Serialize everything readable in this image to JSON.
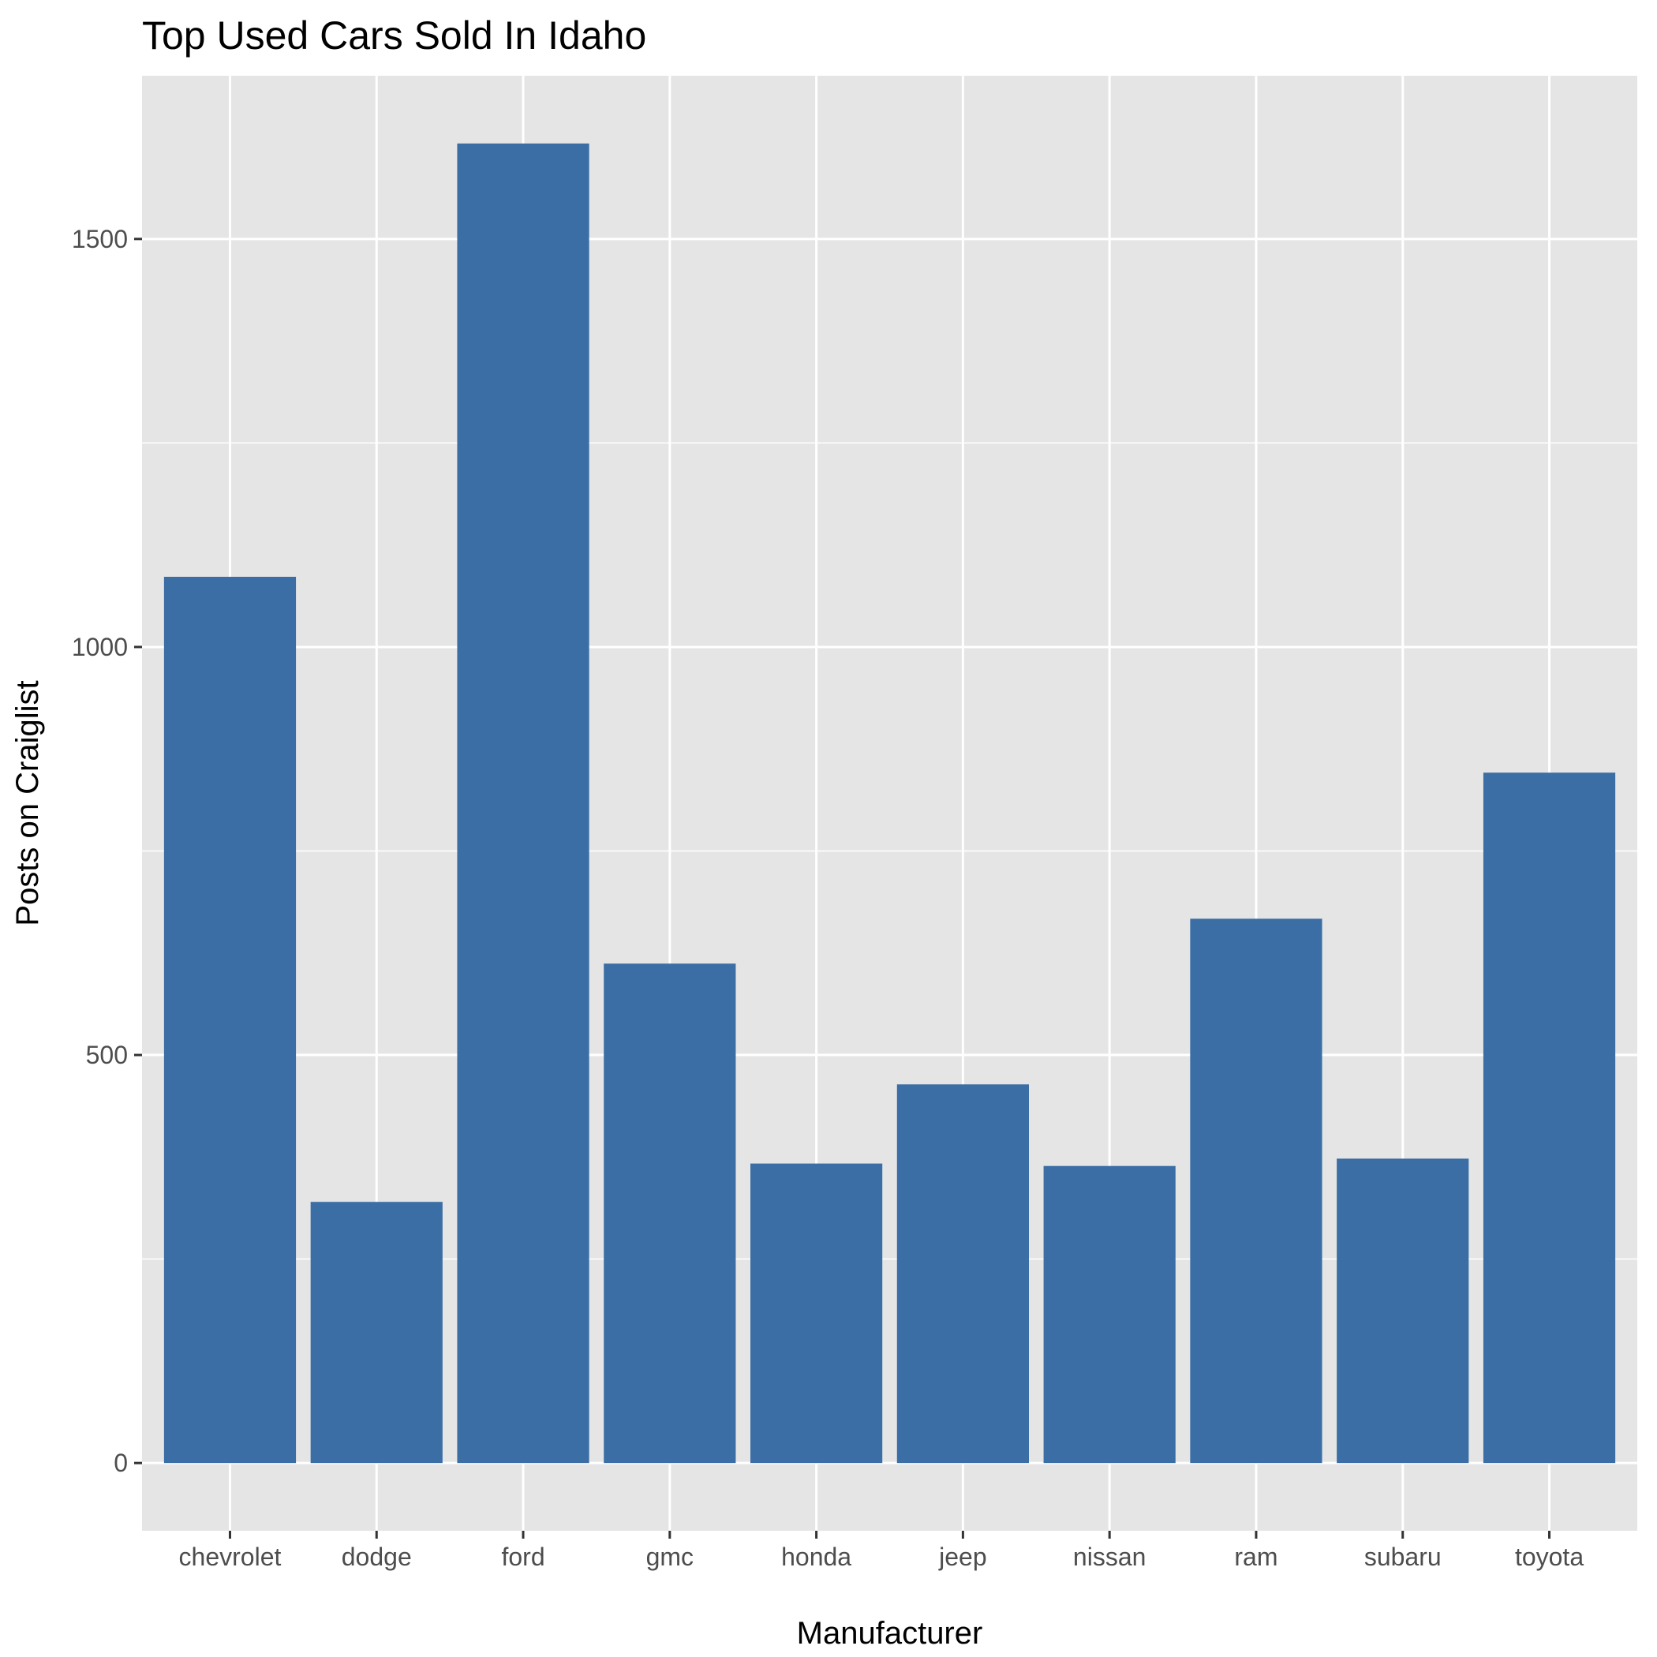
{
  "chart_data": {
    "type": "bar",
    "title": "Top Used Cars Sold In Idaho",
    "xlabel": "Manufacturer",
    "ylabel": "Posts on Craiglist",
    "categories": [
      "chevrolet",
      "dodge",
      "ford",
      "gmc",
      "honda",
      "jeep",
      "nissan",
      "ram",
      "subaru",
      "toyota"
    ],
    "values": [
      1086,
      320,
      1617,
      612,
      367,
      464,
      364,
      667,
      373,
      846
    ],
    "ylim": [
      -83,
      1700
    ],
    "yticks": [
      0,
      500,
      1000,
      1500
    ],
    "ytick_labels": [
      "0",
      "500",
      "1000",
      "1500"
    ],
    "grid": true,
    "colors": {
      "bar": "#3a6ea5",
      "panel": "#e5e5e5",
      "grid": "#ffffff",
      "tick_text": "#4d4d4d",
      "text": "#000000"
    }
  }
}
